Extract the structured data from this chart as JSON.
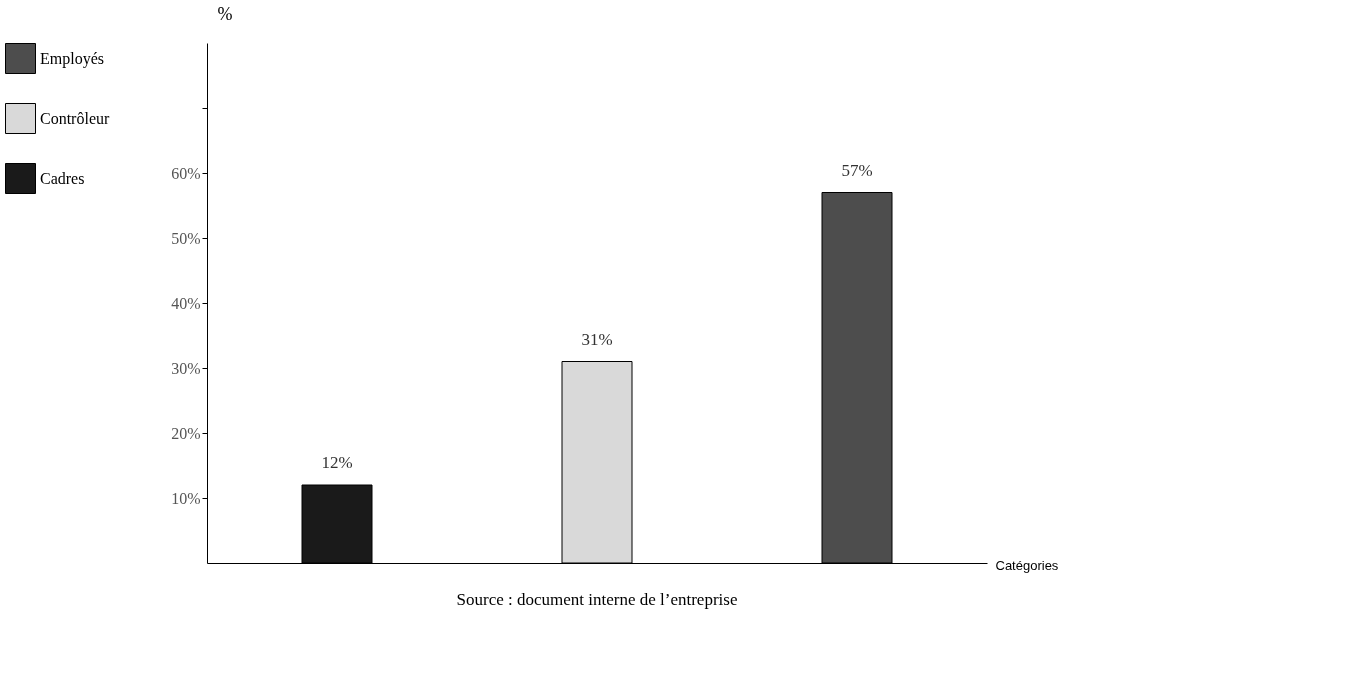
{
  "chart_data": {
    "type": "bar",
    "xlabel": "Catégories",
    "ylabel": "%",
    "categories": [
      null,
      null,
      null
    ],
    "series": [
      {
        "name": "Employés",
        "color": "#4d4d4d",
        "values": [
          null,
          null,
          57
        ],
        "value_labels": [
          null,
          null,
          "57%"
        ]
      },
      {
        "name": "Contrôleur",
        "color": "#d9d9d9",
        "values": [
          null,
          31,
          null
        ],
        "value_labels": [
          null,
          "31%",
          null
        ]
      },
      {
        "name": "Cadres",
        "color": "#1a1a1a",
        "values": [
          12,
          null,
          null
        ],
        "value_labels": [
          "12%",
          null,
          null
        ]
      }
    ],
    "ylim": [
      0,
      80
    ],
    "yticks": [
      {
        "value": 10,
        "label": "10%"
      },
      {
        "value": 20,
        "label": "20%"
      },
      {
        "value": 30,
        "label": "30%"
      },
      {
        "value": 40,
        "label": "40%"
      },
      {
        "value": 50,
        "label": "50%"
      },
      {
        "value": 60,
        "label": "60%"
      },
      {
        "value": 70,
        "label": null
      }
    ],
    "grid": false,
    "legend": "left",
    "annotations": [
      "Source : document interne de l’entreprise"
    ]
  }
}
